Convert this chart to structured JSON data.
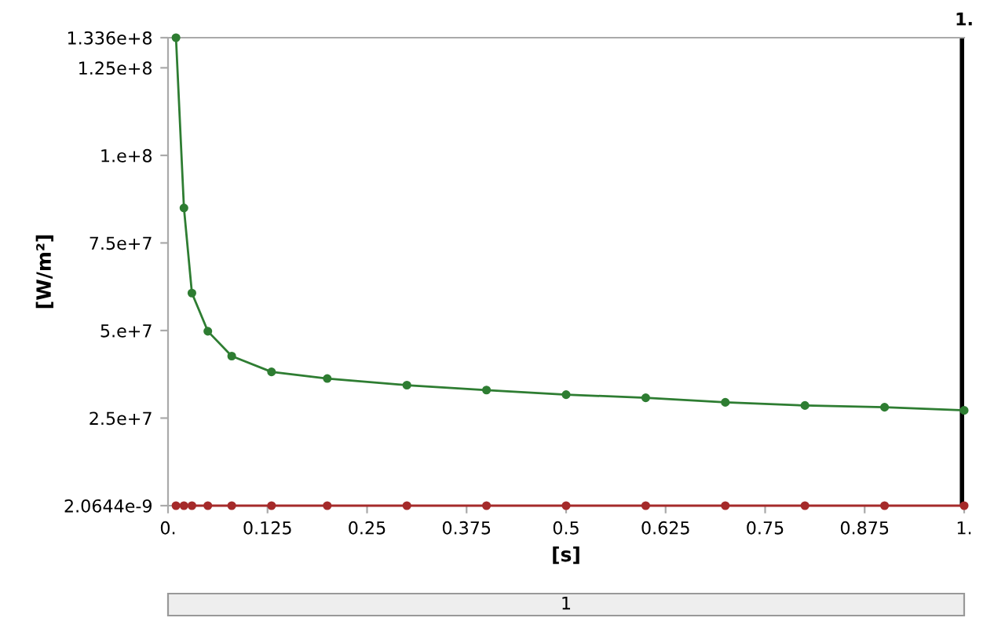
{
  "chart_data": {
    "type": "line",
    "xlabel": "[s]",
    "ylabel": "[W/m²]",
    "x": [
      0.01,
      0.02,
      0.03,
      0.05,
      0.08,
      0.13,
      0.2,
      0.3,
      0.4,
      0.5,
      0.6,
      0.7,
      0.8,
      0.9,
      1.0
    ],
    "series": [
      {
        "color": "#2e7d32",
        "values": [
          133600000.0,
          85000000.0,
          60700000.0,
          49800000.0,
          42700000.0,
          38200000.0,
          36300000.0,
          34400000.0,
          33000000.0,
          31700000.0,
          30800000.0,
          29500000.0,
          28600000.0,
          28100000.0,
          27200000.0
        ]
      },
      {
        "color": "#a52a2a",
        "values": [
          2.0644e-09,
          2.0644e-09,
          2.0644e-09,
          2.0644e-09,
          2.0644e-09,
          2.0644e-09,
          2.0644e-09,
          2.0644e-09,
          2.0644e-09,
          2.0644e-09,
          2.0644e-09,
          2.0644e-09,
          2.0644e-09,
          2.0644e-09,
          2.0644e-09
        ]
      }
    ],
    "xlim": [
      0,
      1
    ],
    "ylim": [
      2.0644e-09,
      133600000.0
    ],
    "xticks": [
      {
        "value": 0,
        "label": "0."
      },
      0.125,
      0.25,
      0.375,
      0.5,
      0.625,
      0.75,
      0.875,
      {
        "value": 1,
        "label": "1."
      }
    ],
    "yticks": [
      {
        "value": 2.0644e-09,
        "label": "2.0644e-9"
      },
      {
        "value": 25000000.0,
        "label": "2.5e+7"
      },
      {
        "value": 50000000.0,
        "label": "5.e+7"
      },
      {
        "value": 75000000.0,
        "label": "7.5e+7"
      },
      {
        "value": 100000000.0,
        "label": "1.e+8"
      },
      {
        "value": 125000000.0,
        "label": "1.25e+8"
      },
      {
        "value": 133600000.0,
        "label": "1.336e+8"
      }
    ],
    "ref_lines": [
      {
        "axis": "x",
        "value": 1,
        "label": "1.",
        "color": "#000000"
      }
    ],
    "annotations": [
      "1"
    ],
    "marker": "circle",
    "line_style": "solid",
    "grid": false,
    "legend": false
  }
}
